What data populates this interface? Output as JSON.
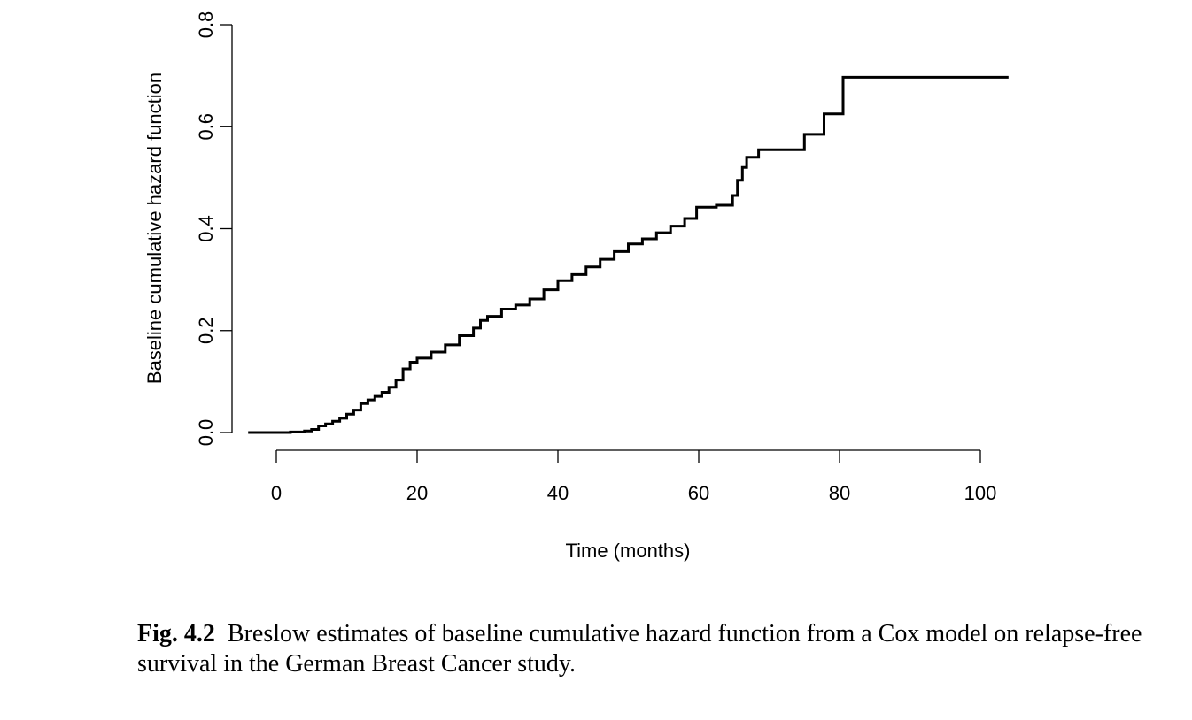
{
  "chart_data": {
    "type": "line",
    "step": true,
    "xlabel": "Time (months)",
    "ylabel": "Baseline cumulative hazard function",
    "xlim": [
      -4,
      104
    ],
    "ylim": [
      0,
      0.8
    ],
    "xticks": [
      0,
      20,
      40,
      60,
      80,
      100
    ],
    "xtick_labels": [
      "0",
      "20",
      "40",
      "60",
      "80",
      "100"
    ],
    "yticks": [
      0,
      0.2,
      0.4,
      0.6,
      0.8
    ],
    "ytick_labels": [
      "0.0",
      "0.2",
      "0.4",
      "0.6",
      "0.8"
    ],
    "grid": false,
    "line_color": "#000000",
    "series": [
      {
        "x": [
          -4,
          2,
          4,
          5,
          6,
          7,
          8,
          9,
          10,
          11,
          12,
          13,
          14,
          15,
          16,
          17,
          18,
          19,
          20,
          22,
          24,
          26,
          28,
          29,
          30,
          32,
          34,
          36,
          38,
          40,
          42,
          44,
          46,
          48,
          50,
          52,
          54,
          56,
          58,
          59.7,
          62.5,
          64.8,
          65.5,
          66.2,
          66.8,
          68.5,
          75,
          77.8,
          80.5,
          104
        ],
        "y": [
          0,
          0.001,
          0.003,
          0.006,
          0.013,
          0.017,
          0.022,
          0.028,
          0.036,
          0.044,
          0.057,
          0.064,
          0.071,
          0.079,
          0.089,
          0.103,
          0.125,
          0.138,
          0.146,
          0.158,
          0.172,
          0.19,
          0.205,
          0.22,
          0.228,
          0.242,
          0.25,
          0.262,
          0.28,
          0.298,
          0.31,
          0.325,
          0.34,
          0.355,
          0.37,
          0.38,
          0.392,
          0.405,
          0.42,
          0.442,
          0.446,
          0.465,
          0.495,
          0.52,
          0.54,
          0.555,
          0.585,
          0.625,
          0.697,
          0.697
        ]
      }
    ]
  },
  "caption": {
    "label": "Fig. 4.2",
    "text": "Breslow estimates of baseline cumulative hazard function from a Cox model on relapse-free survival in the German Breast Cancer study."
  }
}
